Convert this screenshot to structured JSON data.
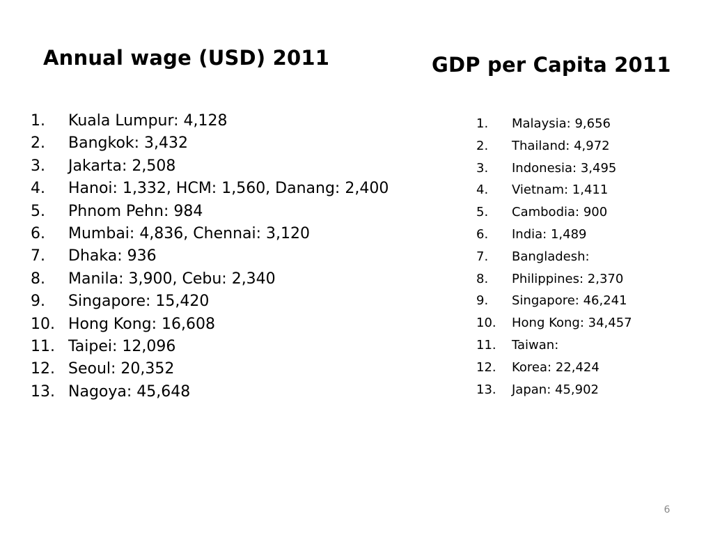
{
  "slide": {
    "left_column": {
      "title": "Annual wage (USD) 2011",
      "items": [
        {
          "num": "1.",
          "text": "Kuala Lumpur: 4,128"
        },
        {
          "num": "2.",
          "text": "Bangkok: 3,432"
        },
        {
          "num": "3.",
          "text": "Jakarta: 2,508"
        },
        {
          "num": "4.",
          "text": "Hanoi: 1,332, HCM: 1,560, Danang: 2,400"
        },
        {
          "num": "5.",
          "text": "Phnom Pehn: 984"
        },
        {
          "num": "6.",
          "text": "Mumbai: 4,836, Chennai: 3,120"
        },
        {
          "num": "7.",
          "text": "Dhaka: 936"
        },
        {
          "num": "8.",
          "text": "Manila: 3,900, Cebu: 2,340"
        },
        {
          "num": "9.",
          "text": "Singapore: 15,420"
        },
        {
          "num": "10.",
          "text": "Hong Kong: 16,608"
        },
        {
          "num": "11.",
          "text": "Taipei: 12,096"
        },
        {
          "num": "12.",
          "text": "Seoul: 20,352"
        },
        {
          "num": "13.",
          "text": "Nagoya: 45,648"
        }
      ]
    },
    "right_column": {
      "title": "GDP per Capita 2011",
      "items": [
        {
          "num": "1.",
          "text": "Malaysia: 9,656"
        },
        {
          "num": "2.",
          "text": "Thailand: 4,972"
        },
        {
          "num": "3.",
          "text": "Indonesia: 3,495"
        },
        {
          "num": "4.",
          "text": "Vietnam: 1,411"
        },
        {
          "num": "5.",
          "text": "Cambodia: 900"
        },
        {
          "num": "6.",
          "text": "India: 1,489"
        },
        {
          "num": "7.",
          "text": "Bangladesh:"
        },
        {
          "num": "8.",
          "text": "Philippines: 2,370"
        },
        {
          "num": "9.",
          "text": "Singapore: 46,241"
        },
        {
          "num": "10.",
          "text": "Hong Kong: 34,457"
        },
        {
          "num": "11.",
          "text": "Taiwan:"
        },
        {
          "num": "12.",
          "text": "Korea: 22,424"
        },
        {
          "num": "13.",
          "text": "Japan: 45,902"
        }
      ]
    },
    "page_number": "6"
  }
}
